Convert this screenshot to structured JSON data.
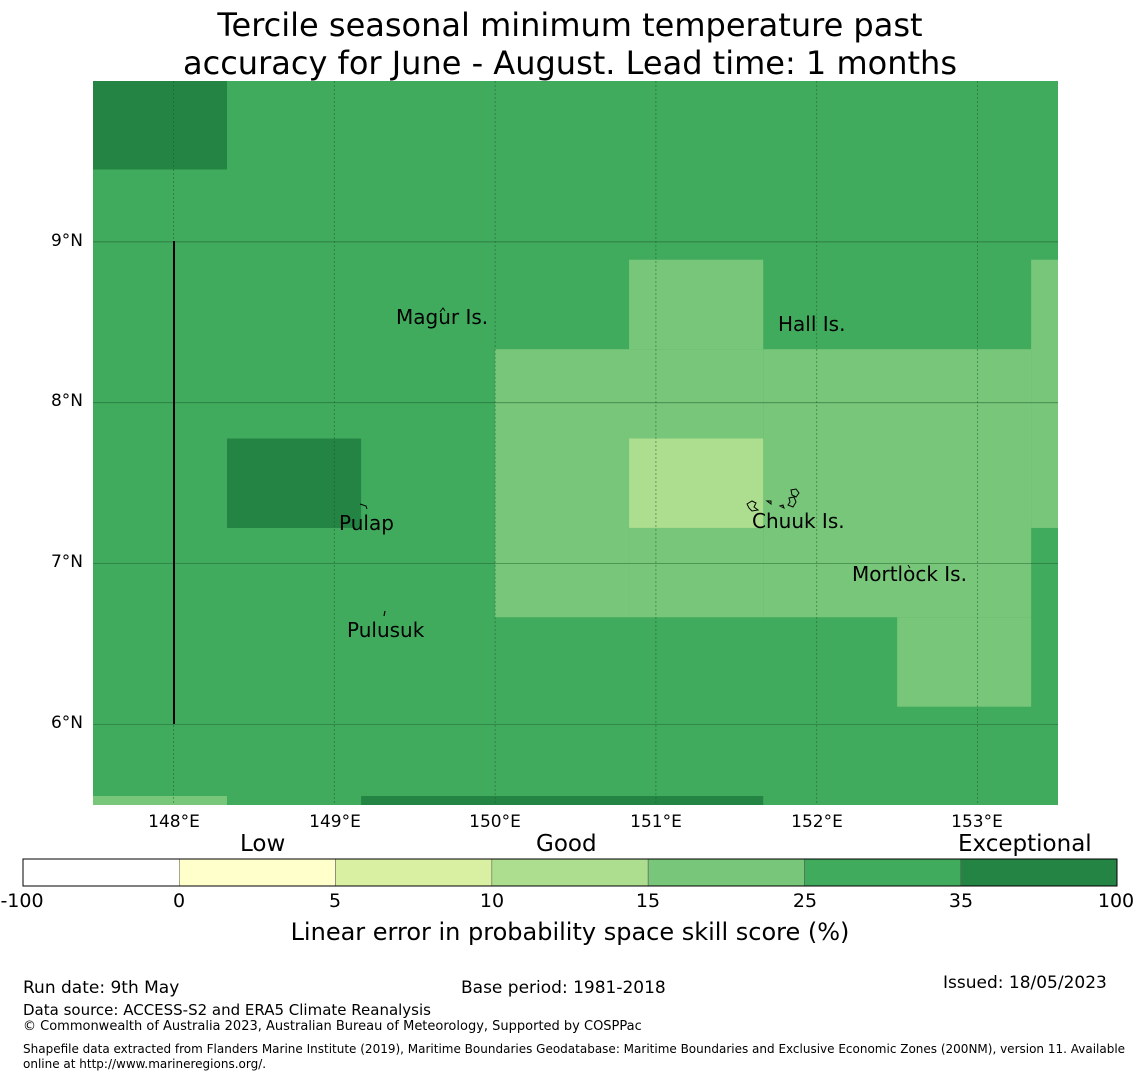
{
  "title": {
    "line1": "Tercile seasonal minimum temperature past",
    "line2": "accuracy for June - August. Lead time: 1 months"
  },
  "map": {
    "lat_labels": [
      "9°N",
      "8°N",
      "7°N",
      "6°N"
    ],
    "lon_labels": [
      "148°E",
      "149°E",
      "150°E",
      "151°E",
      "152°E",
      "153°E"
    ],
    "places": [
      "Magur Is.",
      "Hall Is.",
      "Pulap",
      "Chuuk Is.",
      "Mortlock Is.",
      "Pulusuk"
    ],
    "category_colors": {
      "25-35": "#41ab5d",
      "35-100": "#238443",
      "15-25": "#78c679",
      "10-15": "#addd8e",
      "5-10": "#d9f0a3",
      "0-5": "#ffffcc",
      "-100-0": "#ffffff"
    },
    "default_category": "25-35",
    "cells": [
      {
        "lon": [
          147.5,
          148.333
        ],
        "lat": [
          9.45,
          10.0
        ],
        "category": "35-100"
      },
      {
        "lon": [
          148.333,
          149.167
        ],
        "lat": [
          7.222,
          7.778
        ],
        "category": "35-100"
      },
      {
        "lon": [
          150.0,
          151.667
        ],
        "lat": [
          7.778,
          8.333
        ],
        "category": "15-25"
      },
      {
        "lon": [
          150.833,
          151.667
        ],
        "lat": [
          8.333,
          8.889
        ],
        "category": "15-25"
      },
      {
        "lon": [
          151.667,
          153.333
        ],
        "lat": [
          7.778,
          8.333
        ],
        "category": "15-25"
      },
      {
        "lon": [
          153.333,
          153.5
        ],
        "lat": [
          7.222,
          8.889
        ],
        "category": "15-25"
      },
      {
        "lon": [
          150.0,
          150.833
        ],
        "lat": [
          6.667,
          7.778
        ],
        "category": "15-25"
      },
      {
        "lon": [
          150.833,
          151.667
        ],
        "lat": [
          6.667,
          7.222
        ],
        "category": "15-25"
      },
      {
        "lon": [
          151.667,
          153.333
        ],
        "lat": [
          6.667,
          7.778
        ],
        "category": "15-25"
      },
      {
        "lon": [
          152.5,
          153.333
        ],
        "lat": [
          6.111,
          6.667
        ],
        "category": "15-25"
      },
      {
        "lon": [
          150.833,
          151.667
        ],
        "lat": [
          7.222,
          7.778
        ],
        "category": "10-15"
      },
      {
        "lon": [
          147.5,
          148.333
        ],
        "lat": [
          5.5,
          5.556
        ],
        "category": "15-25"
      },
      {
        "lon": [
          149.167,
          151.667
        ],
        "lat": [
          5.5,
          5.556
        ],
        "category": "35-100"
      }
    ]
  },
  "colorbar": {
    "categories": [
      "Low",
      "Good",
      "Exceptional"
    ],
    "ticks": [
      "-100",
      "0",
      "5",
      "10",
      "15",
      "25",
      "35",
      "100"
    ],
    "colors": [
      "#ffffff",
      "#ffffcc",
      "#d9f0a3",
      "#addd8e",
      "#78c679",
      "#41ab5d",
      "#238443"
    ],
    "label": "Linear error in probability space skill score (%)"
  },
  "footer": {
    "run_date": "Run date: 9th May",
    "base_period": "Base period: 1981-2018",
    "issued": "Issued: 18/05/2023",
    "data_source": "Data source: ACCESS-S2 and ERA5 Climate Reanalysis",
    "copyright": "© Commonwealth of Australia 2023, Australian Bureau of Meteorology, Supported by COSPPac",
    "shapefile_line1": "Shapefile data extracted from Flanders Marine Institute (2019), Maritime Boundaries Geodatabase: Maritime Boundaries and Exclusive Economic Zones (200NM), version 11. Available",
    "shapefile_line2": "online at http://www.marineregions.org/."
  }
}
